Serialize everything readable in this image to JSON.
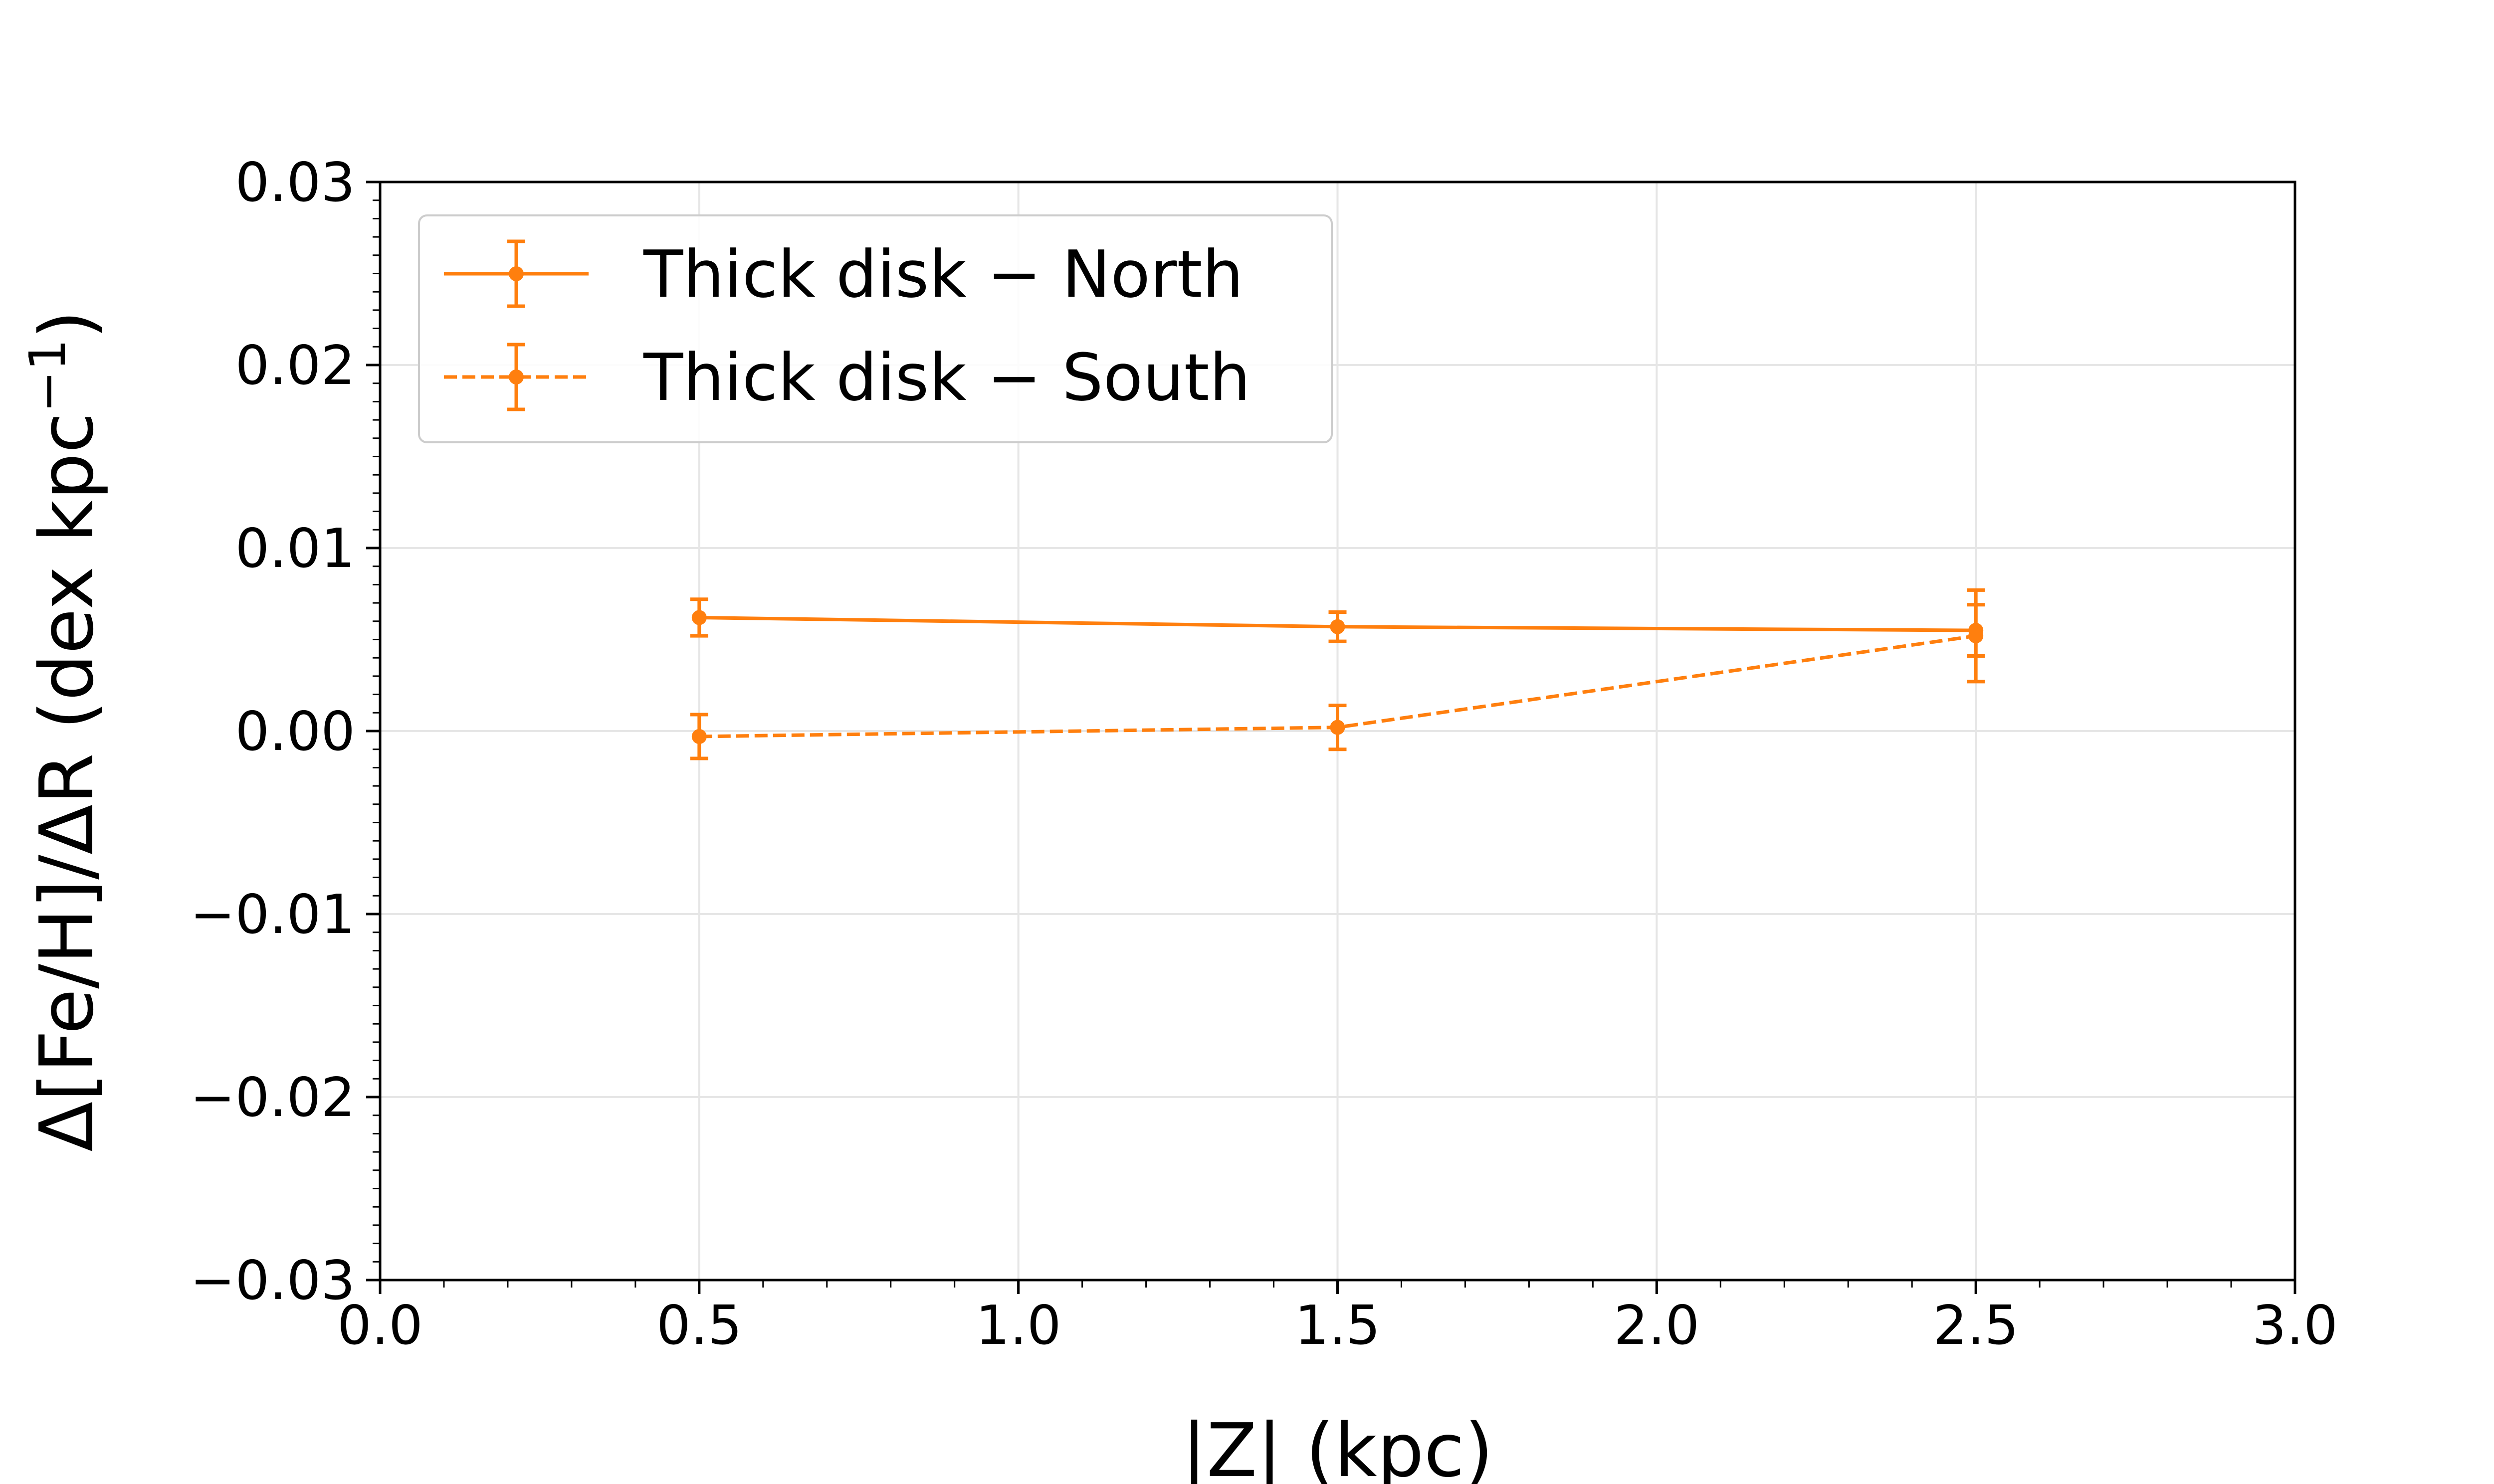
{
  "chart_data": {
    "type": "line",
    "xlabel": "|Z| (kpc)",
    "ylabel": "Δ[Fe/H]/ΔR (dex kpc",
    "ylabel_superscript": "−1",
    "ylabel_close": ")",
    "xlim": [
      0.0,
      3.0
    ],
    "ylim": [
      -0.03,
      0.03
    ],
    "xticks": [
      "0.0",
      "0.5",
      "1.0",
      "1.5",
      "2.0",
      "2.5",
      "3.0"
    ],
    "yticks": [
      "−0.03",
      "−0.02",
      "−0.01",
      "0.00",
      "0.01",
      "0.02",
      "0.03"
    ],
    "grid": true,
    "legend_position": "top-left",
    "color": "#ff7f0e",
    "series": [
      {
        "name": "Thick disk − North",
        "line_style": "solid",
        "x": [
          0.5,
          1.5,
          2.5
        ],
        "y": [
          0.0062,
          0.0057,
          0.0055
        ],
        "yerr": [
          0.001,
          0.0008,
          0.0014
        ]
      },
      {
        "name": "Thick disk − South",
        "line_style": "dashed",
        "x": [
          0.5,
          1.5,
          2.5
        ],
        "y": [
          -0.0003,
          0.0002,
          0.0052
        ],
        "yerr": [
          0.0012,
          0.0012,
          0.0025
        ]
      }
    ]
  }
}
